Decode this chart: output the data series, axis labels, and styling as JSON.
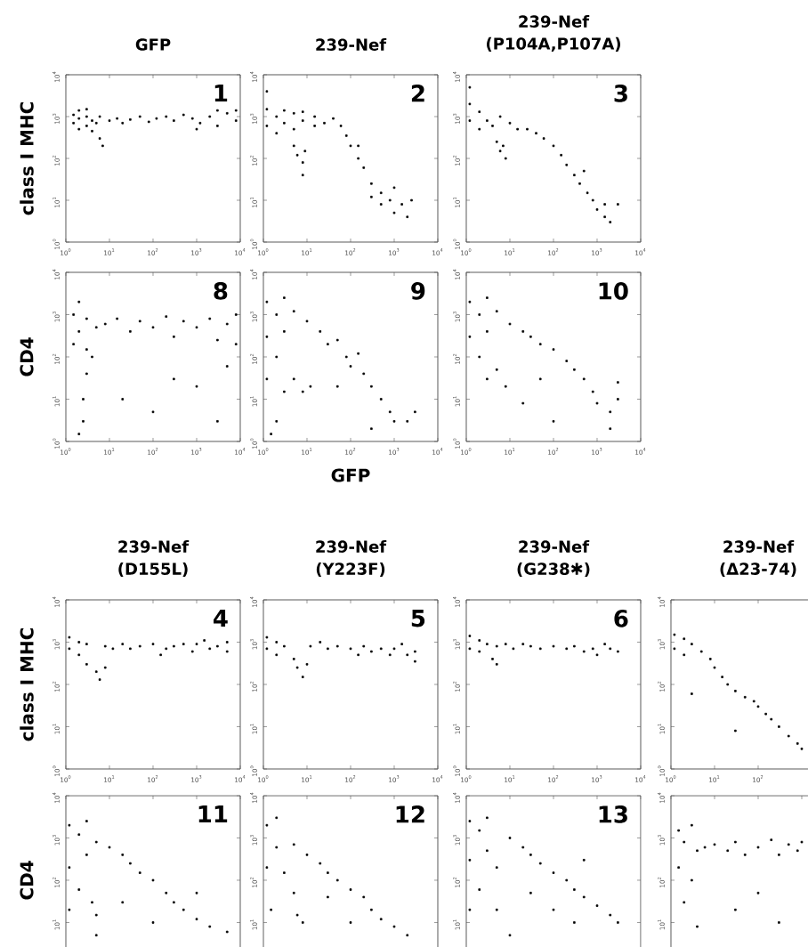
{
  "chart_data": [
    {
      "type": "scatter",
      "title": "GFP",
      "ylabel": "class I MHC",
      "annotations": [
        "1"
      ],
      "log": "xy",
      "xlim": [
        1,
        10000
      ],
      "ylim": [
        1,
        10000
      ],
      "marker": "square",
      "color": "#000000",
      "xticks": [
        {
          "value": 1,
          "label": "10$^{0}$"
        },
        {
          "value": 10,
          "label": "10$^{1}$"
        },
        {
          "value": 100,
          "label": "10$^{2}$"
        },
        {
          "value": 1000,
          "label": "10$^{3}$"
        },
        {
          "value": 10000,
          "label": "10$^{4}$"
        }
      ],
      "yticks": [
        {
          "value": 1,
          "label": "10$^{0}$"
        },
        {
          "value": 10,
          "label": "10$^{1}$"
        },
        {
          "value": 100,
          "label": "10$^{2}$"
        },
        {
          "value": 1000,
          "label": "10$^{3}$"
        },
        {
          "value": 10000,
          "label": "10$^{4}$"
        }
      ],
      "x": [
        1.5,
        1.5,
        2,
        2,
        2,
        3,
        3,
        3,
        4,
        4,
        5,
        6,
        7,
        6,
        10,
        15,
        20,
        30,
        50,
        80,
        120,
        200,
        300,
        500,
        800,
        1200,
        2000,
        3000,
        5000,
        8000,
        8000,
        3000,
        1000
      ],
      "values": [
        700,
        1100,
        500,
        900,
        1400,
        600,
        1000,
        1500,
        450,
        800,
        700,
        300,
        200,
        1000,
        800,
        900,
        700,
        850,
        1000,
        750,
        900,
        1000,
        800,
        1100,
        900,
        700,
        1000,
        600,
        1200,
        800,
        1400,
        1400,
        500
      ]
    },
    {
      "type": "scatter",
      "title": "239-Nef",
      "annotations": [
        "2"
      ],
      "log": "xy",
      "xlim": [
        1,
        10000
      ],
      "ylim": [
        1,
        10000
      ],
      "marker": "square",
      "color": "#000000",
      "xticks": [
        {
          "value": 1,
          "label": "10$^{0}$"
        },
        {
          "value": 10,
          "label": "10$^{1}$"
        },
        {
          "value": 100,
          "label": "10$^{2}$"
        },
        {
          "value": 1000,
          "label": "10$^{3}$"
        },
        {
          "value": 10000,
          "label": "10$^{4}$"
        }
      ],
      "yticks": [
        {
          "value": 1,
          "label": "10$^{0}$"
        },
        {
          "value": 10,
          "label": "10$^{1}$"
        },
        {
          "value": 100,
          "label": "10$^{2}$"
        },
        {
          "value": 1000,
          "label": "10$^{3}$"
        },
        {
          "value": 10000,
          "label": "10$^{4}$"
        }
      ],
      "x": [
        1.2,
        1.2,
        1.2,
        2,
        2,
        3,
        3,
        5,
        5,
        8,
        8,
        15,
        15,
        25,
        40,
        5,
        6,
        8,
        9,
        8,
        60,
        80,
        100,
        150,
        200,
        300,
        300,
        500,
        500,
        800,
        1000,
        1500,
        2000,
        2500,
        1000,
        150
      ],
      "values": [
        600,
        1500,
        4000,
        400,
        1000,
        700,
        1400,
        500,
        1200,
        800,
        1300,
        600,
        1000,
        700,
        900,
        200,
        120,
        80,
        150,
        40,
        600,
        350,
        200,
        100,
        60,
        25,
        12,
        15,
        8,
        10,
        5,
        8,
        4,
        10,
        20,
        200
      ]
    },
    {
      "type": "scatter",
      "title": "239-Nef",
      "subtitle": "(P104A,P107A)",
      "annotations": [
        "3"
      ],
      "log": "xy",
      "xlim": [
        1,
        10000
      ],
      "ylim": [
        1,
        10000
      ],
      "marker": "square",
      "color": "#000000",
      "xticks": [
        {
          "value": 1,
          "label": "10$^{0}$"
        },
        {
          "value": 10,
          "label": "10$^{1}$"
        },
        {
          "value": 100,
          "label": "10$^{2}$"
        },
        {
          "value": 1000,
          "label": "10$^{3}$"
        },
        {
          "value": 10000,
          "label": "10$^{4}$"
        }
      ],
      "yticks": [
        {
          "value": 1,
          "label": "10$^{0}$"
        },
        {
          "value": 10,
          "label": "10$^{1}$"
        },
        {
          "value": 100,
          "label": "10$^{2}$"
        },
        {
          "value": 1000,
          "label": "10$^{3}$"
        },
        {
          "value": 10000,
          "label": "10$^{4}$"
        }
      ],
      "x": [
        1.2,
        1.2,
        1.2,
        2,
        2,
        3,
        4,
        6,
        10,
        15,
        5,
        6,
        8,
        7,
        25,
        40,
        60,
        100,
        150,
        200,
        300,
        400,
        600,
        800,
        1000,
        1500,
        2000,
        1500,
        3000,
        500
      ],
      "values": [
        800,
        2000,
        5000,
        500,
        1300,
        800,
        600,
        1000,
        700,
        500,
        250,
        150,
        100,
        200,
        500,
        400,
        300,
        200,
        120,
        70,
        40,
        25,
        15,
        10,
        6,
        4,
        3,
        8,
        8,
        50
      ]
    },
    {
      "type": "scatter",
      "ylabel": "CD4",
      "annotations": [
        "8"
      ],
      "log": "xy",
      "xlim": [
        1,
        10000
      ],
      "ylim": [
        1,
        10000
      ],
      "marker": "square",
      "color": "#000000",
      "xticks": [
        {
          "value": 1,
          "label": "10$^{0}$"
        },
        {
          "value": 10,
          "label": "10$^{1}$"
        },
        {
          "value": 100,
          "label": "10$^{2}$"
        },
        {
          "value": 1000,
          "label": "10$^{3}$"
        },
        {
          "value": 10000,
          "label": "10$^{4}$"
        }
      ],
      "yticks": [
        {
          "value": 1,
          "label": "10$^{0}$"
        },
        {
          "value": 10,
          "label": "10$^{1}$"
        },
        {
          "value": 100,
          "label": "10$^{2}$"
        },
        {
          "value": 1000,
          "label": "10$^{3}$"
        },
        {
          "value": 10000,
          "label": "10$^{4}$"
        }
      ],
      "x": [
        1.5,
        1.5,
        2,
        2,
        3,
        3,
        3,
        2.5,
        2.5,
        2,
        4,
        5,
        8,
        15,
        30,
        50,
        100,
        200,
        300,
        500,
        1000,
        2000,
        3000,
        5000,
        8000,
        8000,
        1000,
        100,
        3000,
        300,
        20,
        5000
      ],
      "values": [
        200,
        1000,
        2000,
        400,
        150,
        800,
        40,
        10,
        3,
        1.5,
        100,
        500,
        600,
        800,
        400,
        700,
        500,
        900,
        300,
        700,
        500,
        800,
        250,
        600,
        200,
        1000,
        20,
        5,
        3,
        30,
        10,
        60
      ]
    },
    {
      "type": "scatter",
      "xlabel": "GFP",
      "annotations": [
        "9"
      ],
      "log": "xy",
      "xlim": [
        1,
        10000
      ],
      "ylim": [
        1,
        10000
      ],
      "marker": "square",
      "color": "#000000",
      "xticks": [
        {
          "value": 1,
          "label": "10$^{0}$"
        },
        {
          "value": 10,
          "label": "10$^{1}$"
        },
        {
          "value": 100,
          "label": "10$^{2}$"
        },
        {
          "value": 1000,
          "label": "10$^{3}$"
        },
        {
          "value": 10000,
          "label": "10$^{4}$"
        }
      ],
      "yticks": [
        {
          "value": 1,
          "label": "10$^{0}$"
        },
        {
          "value": 10,
          "label": "10$^{1}$"
        },
        {
          "value": 100,
          "label": "10$^{2}$"
        },
        {
          "value": 1000,
          "label": "10$^{3}$"
        },
        {
          "value": 10000,
          "label": "10$^{4}$"
        }
      ],
      "x": [
        1.2,
        1.2,
        1.2,
        2,
        2,
        3,
        3,
        3,
        5,
        5,
        8,
        10,
        12,
        20,
        30,
        50,
        80,
        100,
        200,
        300,
        500,
        800,
        1000,
        2000,
        3000,
        2,
        1.5,
        50,
        300,
        150
      ],
      "values": [
        2000,
        300,
        30,
        1000,
        100,
        2500,
        400,
        15,
        1200,
        30,
        15,
        700,
        20,
        400,
        200,
        250,
        100,
        60,
        40,
        20,
        10,
        5,
        3,
        3,
        5,
        3,
        1.5,
        20,
        2,
        120
      ]
    },
    {
      "type": "scatter",
      "annotations": [
        "10"
      ],
      "log": "xy",
      "xlim": [
        1,
        10000
      ],
      "ylim": [
        1,
        10000
      ],
      "marker": "square",
      "color": "#000000",
      "xticks": [
        {
          "value": 1,
          "label": "10$^{0}$"
        },
        {
          "value": 10,
          "label": "10$^{1}$"
        },
        {
          "value": 100,
          "label": "10$^{2}$"
        },
        {
          "value": 1000,
          "label": "10$^{3}$"
        },
        {
          "value": 10000,
          "label": "10$^{4}$"
        }
      ],
      "yticks": [
        {
          "value": 1,
          "label": "10$^{0}$"
        },
        {
          "value": 10,
          "label": "10$^{1}$"
        },
        {
          "value": 100,
          "label": "10$^{2}$"
        },
        {
          "value": 1000,
          "label": "10$^{3}$"
        },
        {
          "value": 10000,
          "label": "10$^{4}$"
        }
      ],
      "x": [
        1.2,
        1.2,
        2,
        2,
        3,
        3,
        3,
        5,
        5,
        8,
        10,
        20,
        30,
        50,
        100,
        200,
        300,
        500,
        800,
        1000,
        2000,
        3000,
        2000,
        100,
        20,
        50,
        3000
      ],
      "values": [
        2000,
        300,
        1000,
        100,
        2500,
        400,
        30,
        1200,
        50,
        20,
        600,
        400,
        300,
        200,
        150,
        80,
        50,
        30,
        15,
        8,
        5,
        10,
        2,
        3,
        8,
        30,
        25
      ]
    },
    {
      "type": "scatter",
      "title": "239-Nef",
      "subtitle": "(D155L)",
      "ylabel": "class I MHC",
      "annotations": [
        "4"
      ],
      "log": "xy",
      "xlim": [
        1,
        10000
      ],
      "ylim": [
        1,
        10000
      ],
      "marker": "square",
      "color": "#000000",
      "xticks": [
        {
          "value": 1,
          "label": "10$^{0}$"
        },
        {
          "value": 10,
          "label": "10$^{1}$"
        },
        {
          "value": 100,
          "label": "10$^{2}$"
        },
        {
          "value": 1000,
          "label": "10$^{3}$"
        },
        {
          "value": 10000,
          "label": "10$^{4}$"
        }
      ],
      "yticks": [
        {
          "value": 1,
          "label": "10$^{0}$"
        },
        {
          "value": 10,
          "label": "10$^{1}$"
        },
        {
          "value": 100,
          "label": "10$^{2}$"
        },
        {
          "value": 1000,
          "label": "10$^{3}$"
        },
        {
          "value": 10000,
          "label": "10$^{4}$"
        }
      ],
      "x": [
        1.2,
        1.2,
        2,
        2,
        3,
        3,
        5,
        6,
        8,
        8,
        12,
        20,
        30,
        50,
        100,
        200,
        300,
        500,
        800,
        1000,
        2000,
        3000,
        5000,
        5000,
        1500,
        150
      ],
      "values": [
        700,
        1300,
        500,
        1000,
        300,
        900,
        200,
        130,
        250,
        800,
        700,
        900,
        700,
        800,
        900,
        700,
        800,
        900,
        600,
        900,
        700,
        800,
        600,
        1000,
        1100,
        500
      ]
    },
    {
      "type": "scatter",
      "title": "239-Nef",
      "subtitle": "(Y223F)",
      "annotations": [
        "5"
      ],
      "log": "xy",
      "xlim": [
        1,
        10000
      ],
      "ylim": [
        1,
        10000
      ],
      "marker": "square",
      "color": "#000000",
      "xticks": [
        {
          "value": 1,
          "label": "10$^{0}$"
        },
        {
          "value": 10,
          "label": "10$^{1}$"
        },
        {
          "value": 100,
          "label": "10$^{2}$"
        },
        {
          "value": 1000,
          "label": "10$^{3}$"
        },
        {
          "value": 10000,
          "label": "10$^{4}$"
        }
      ],
      "yticks": [
        {
          "value": 1,
          "label": "10$^{0}$"
        },
        {
          "value": 10,
          "label": "10$^{1}$"
        },
        {
          "value": 100,
          "label": "10$^{2}$"
        },
        {
          "value": 1000,
          "label": "10$^{3}$"
        },
        {
          "value": 10000,
          "label": "10$^{4}$"
        }
      ],
      "x": [
        1.2,
        1.2,
        2,
        2,
        3,
        5,
        6,
        8,
        10,
        12,
        20,
        30,
        50,
        100,
        200,
        300,
        500,
        800,
        1000,
        2000,
        3000,
        3000,
        1500,
        150
      ],
      "values": [
        700,
        1300,
        500,
        1000,
        800,
        400,
        250,
        150,
        300,
        800,
        1000,
        700,
        800,
        700,
        800,
        600,
        700,
        500,
        700,
        500,
        600,
        350,
        900,
        500
      ]
    },
    {
      "type": "scatter",
      "title": "239-Nef",
      "subtitle": "(G238✱)",
      "annotations": [
        "6"
      ],
      "log": "xy",
      "xlim": [
        1,
        10000
      ],
      "ylim": [
        1,
        10000
      ],
      "marker": "square",
      "color": "#000000",
      "xticks": [
        {
          "value": 1,
          "label": "10$^{0}$"
        },
        {
          "value": 10,
          "label": "10$^{1}$"
        },
        {
          "value": 100,
          "label": "10$^{2}$"
        },
        {
          "value": 1000,
          "label": "10$^{3}$"
        },
        {
          "value": 10000,
          "label": "10$^{4}$"
        }
      ],
      "yticks": [
        {
          "value": 1,
          "label": "10$^{0}$"
        },
        {
          "value": 10,
          "label": "10$^{1}$"
        },
        {
          "value": 100,
          "label": "10$^{2}$"
        },
        {
          "value": 1000,
          "label": "10$^{3}$"
        },
        {
          "value": 10000,
          "label": "10$^{4}$"
        }
      ],
      "x": [
        1.2,
        1.2,
        2,
        2,
        3,
        4,
        5,
        5,
        8,
        12,
        20,
        30,
        50,
        100,
        200,
        300,
        500,
        800,
        1000,
        2000,
        3000,
        1500
      ],
      "values": [
        700,
        1400,
        600,
        1100,
        900,
        400,
        300,
        800,
        900,
        700,
        900,
        800,
        700,
        800,
        700,
        800,
        600,
        700,
        500,
        700,
        600,
        900
      ]
    },
    {
      "type": "scatter",
      "title": "239-Nef",
      "subtitle": "(Δ23-74)",
      "log": "xy",
      "xlim": [
        1,
        10000
      ],
      "ylim": [
        1,
        10000
      ],
      "marker": "square",
      "color": "#000000",
      "xticks": [
        {
          "value": 1,
          "label": "10$^{0}$"
        },
        {
          "value": 10,
          "label": "10$^{1}$"
        },
        {
          "value": 100,
          "label": "10$^{2}$"
        }
      ],
      "yticks": [
        {
          "value": 1,
          "label": "10$^{0}$"
        },
        {
          "value": 10,
          "label": "10$^{1}$"
        },
        {
          "value": 100,
          "label": "10$^{2}$"
        },
        {
          "value": 1000,
          "label": "10$^{3}$"
        },
        {
          "value": 10000,
          "label": "10$^{4}$"
        }
      ],
      "x": [
        1.2,
        1.2,
        2,
        2,
        3,
        5,
        8,
        10,
        15,
        20,
        30,
        50,
        80,
        100,
        150,
        200,
        300,
        500,
        800,
        1000,
        30,
        3
      ],
      "values": [
        700,
        1500,
        500,
        1200,
        900,
        600,
        400,
        250,
        150,
        100,
        70,
        50,
        40,
        30,
        20,
        15,
        10,
        6,
        4,
        3,
        8,
        60
      ]
    },
    {
      "type": "scatter",
      "ylabel": "CD4",
      "annotations": [
        "11"
      ],
      "log": "xy",
      "xlim": [
        1,
        10000
      ],
      "ylim": [
        1,
        10000
      ],
      "marker": "square",
      "color": "#000000",
      "tick_labels": "y",
      "xticks": [
        1,
        10,
        100,
        1000,
        10000
      ],
      "yticks": [
        {
          "value": 1,
          "label": null
        },
        {
          "value": 10,
          "label": "10$^{1}$"
        },
        {
          "value": 100,
          "label": "10$^{2}$"
        },
        {
          "value": 1000,
          "label": "10$^{3}$"
        },
        {
          "value": 10000,
          "label": "10$^{4}$"
        }
      ],
      "x": [
        1.2,
        1.2,
        1.2,
        2,
        2,
        3,
        3,
        4,
        5,
        5,
        10,
        20,
        30,
        50,
        100,
        200,
        300,
        500,
        1000,
        2000,
        5000,
        100,
        20,
        1000,
        5
      ],
      "values": [
        2000,
        200,
        20,
        1200,
        60,
        2500,
        400,
        30,
        800,
        15,
        600,
        400,
        250,
        150,
        100,
        50,
        30,
        20,
        12,
        8,
        6,
        10,
        30,
        50,
        5
      ]
    },
    {
      "type": "scatter",
      "annotations": [
        "12"
      ],
      "log": "xy",
      "xlim": [
        1,
        10000
      ],
      "ylim": [
        1,
        10000
      ],
      "marker": "square",
      "color": "#000000",
      "tick_labels": "y",
      "xticks": [
        1,
        10,
        100,
        1000,
        10000
      ],
      "yticks": [
        {
          "value": 1,
          "label": null
        },
        {
          "value": 10,
          "label": "10$^{1}$"
        },
        {
          "value": 100,
          "label": "10$^{2}$"
        },
        {
          "value": 1000,
          "label": "10$^{3}$"
        },
        {
          "value": 10000,
          "label": "10$^{4}$"
        }
      ],
      "x": [
        1.2,
        1.2,
        1.5,
        2,
        2,
        3,
        5,
        6,
        8,
        5,
        10,
        20,
        30,
        50,
        100,
        200,
        300,
        500,
        1000,
        2000,
        100,
        30
      ],
      "values": [
        2000,
        200,
        20,
        3000,
        600,
        150,
        50,
        15,
        10,
        700,
        400,
        250,
        150,
        100,
        60,
        40,
        20,
        12,
        8,
        5,
        10,
        40
      ]
    },
    {
      "type": "scatter",
      "annotations": [
        "13"
      ],
      "log": "xy",
      "xlim": [
        1,
        10000
      ],
      "ylim": [
        1,
        10000
      ],
      "marker": "square",
      "color": "#000000",
      "tick_labels": "y",
      "xticks": [
        1,
        10,
        100,
        1000,
        10000
      ],
      "yticks": [
        {
          "value": 1,
          "label": null
        },
        {
          "value": 10,
          "label": "10$^{1}$"
        },
        {
          "value": 100,
          "label": "10$^{2}$"
        },
        {
          "value": 1000,
          "label": "10$^{3}$"
        },
        {
          "value": 10000,
          "label": "10$^{4}$"
        }
      ],
      "x": [
        1.2,
        1.2,
        1.2,
        2,
        2,
        3,
        3,
        5,
        5,
        10,
        20,
        30,
        50,
        100,
        200,
        300,
        500,
        1000,
        2000,
        3000,
        100,
        300,
        30,
        10,
        500
      ],
      "values": [
        2500,
        300,
        20,
        1500,
        60,
        3000,
        500,
        200,
        20,
        1000,
        600,
        400,
        250,
        150,
        100,
        60,
        40,
        25,
        15,
        10,
        20,
        10,
        50,
        5,
        300
      ]
    },
    {
      "type": "scatter",
      "log": "xy",
      "xlim": [
        1,
        10000
      ],
      "ylim": [
        1,
        10000
      ],
      "marker": "square",
      "color": "#000000",
      "tick_labels": "y",
      "xticks": [
        1,
        10,
        100,
        1000,
        10000
      ],
      "yticks": [
        {
          "value": 1,
          "label": null
        },
        {
          "value": 10,
          "label": "10$^{1}$"
        },
        {
          "value": 100,
          "label": "10$^{2}$"
        },
        {
          "value": 1000,
          "label": "10$^{3}$"
        },
        {
          "value": 10000,
          "label": "10$^{4}$"
        }
      ],
      "x": [
        1.5,
        1.5,
        2,
        2,
        3,
        3,
        4,
        4,
        6,
        10,
        20,
        30,
        50,
        100,
        200,
        300,
        500,
        800,
        1000,
        100,
        30,
        300
      ],
      "values": [
        1500,
        200,
        30,
        800,
        2000,
        100,
        8,
        500,
        600,
        700,
        500,
        800,
        400,
        600,
        900,
        400,
        700,
        500,
        800,
        50,
        20,
        10
      ]
    }
  ]
}
